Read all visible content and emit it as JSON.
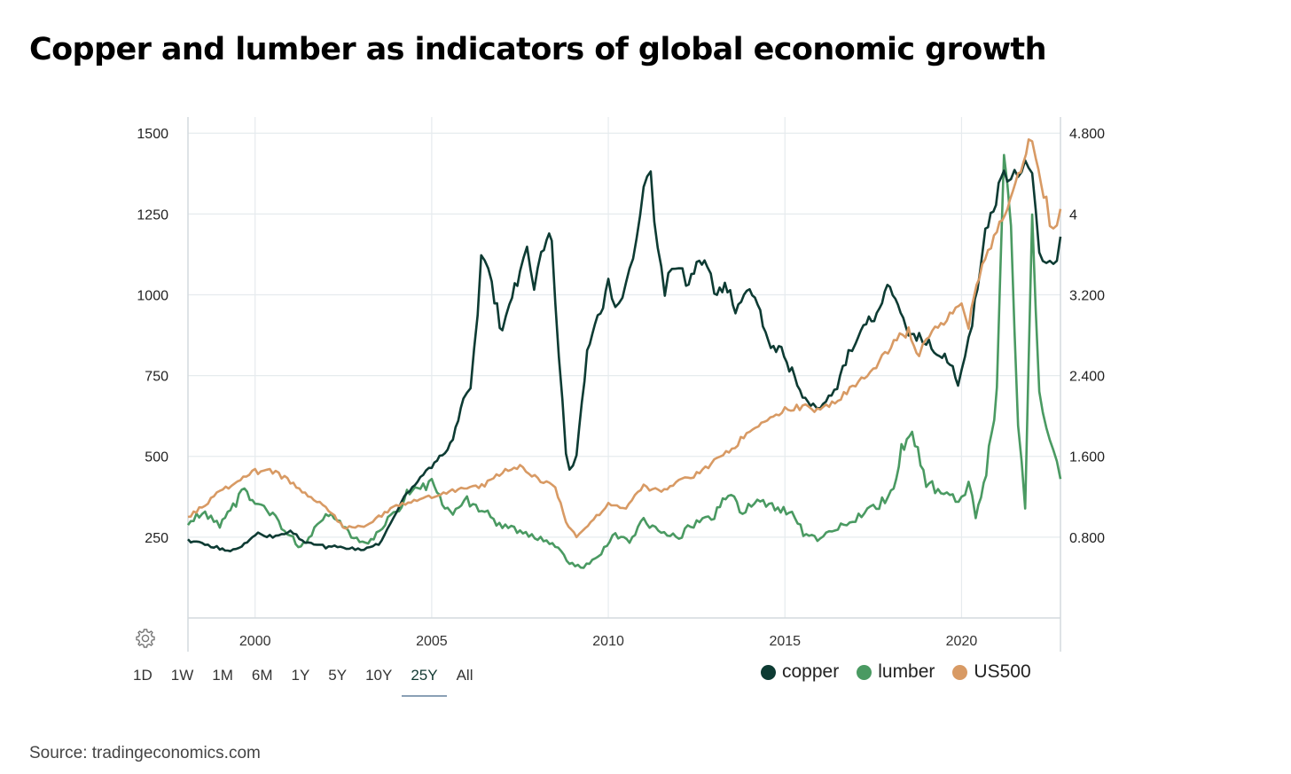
{
  "title": "Copper and lumber as indicators of global economic growth",
  "source": "Source: tradingeconomics.com",
  "range_buttons": [
    "1D",
    "1W",
    "1M",
    "6M",
    "1Y",
    "5Y",
    "10Y",
    "25Y",
    "All"
  ],
  "active_range": "25Y",
  "settings_icon": "gear-icon",
  "colors": {
    "copper": "#0d3b33",
    "lumber": "#4a9a62",
    "us500": "#d89a64",
    "grid": "#e6ebee",
    "axis": "#d4dade"
  },
  "chart_data": {
    "type": "line",
    "x_range": [
      1998.1,
      2022.8
    ],
    "x_ticks": [
      2000,
      2005,
      2010,
      2015,
      2020
    ],
    "left_axis": {
      "ticks": [
        250,
        500,
        750,
        1000,
        1250,
        1500
      ],
      "range": [
        0,
        1550
      ]
    },
    "right_axis": {
      "ticks": [
        "0.800",
        "1.600",
        "2.400",
        "3.200",
        "4",
        "4.800"
      ],
      "tick_values": [
        0.8,
        1.6,
        2.4,
        3.2,
        4.0,
        4.8
      ],
      "range": [
        0,
        4.96
      ]
    },
    "legend_position": "bottom-right",
    "grid": true,
    "series": [
      {
        "name": "lumber",
        "axis": "left",
        "color": "#4a9a62",
        "x": [
          1998.1,
          1998.5,
          1999.0,
          1999.3,
          1999.7,
          2000.0,
          2000.5,
          2001.0,
          2001.3,
          2001.6,
          2002.0,
          2002.4,
          2002.8,
          2003.2,
          2003.6,
          2004.0,
          2004.3,
          2004.6,
          2005.0,
          2005.3,
          2005.6,
          2006.0,
          2006.5,
          2007.0,
          2007.5,
          2008.0,
          2008.5,
          2008.9,
          2009.3,
          2009.8,
          2010.2,
          2010.6,
          2011.0,
          2011.5,
          2012.0,
          2012.5,
          2013.0,
          2013.4,
          2013.8,
          2014.3,
          2014.8,
          2015.2,
          2015.6,
          2016.0,
          2016.5,
          2017.0,
          2017.5,
          2018.0,
          2018.3,
          2018.6,
          2019.0,
          2019.5,
          2020.0,
          2020.2,
          2020.4,
          2020.7,
          2021.0,
          2021.2,
          2021.4,
          2021.6,
          2021.8,
          2022.0,
          2022.2,
          2022.4,
          2022.6,
          2022.8
        ],
        "y": [
          300,
          320,
          290,
          340,
          390,
          350,
          320,
          250,
          220,
          260,
          330,
          300,
          250,
          230,
          280,
          330,
          380,
          400,
          420,
          360,
          330,
          360,
          330,
          280,
          270,
          250,
          220,
          170,
          160,
          200,
          260,
          230,
          300,
          260,
          250,
          300,
          320,
          380,
          330,
          360,
          340,
          320,
          250,
          240,
          280,
          310,
          340,
          380,
          520,
          590,
          420,
          380,
          360,
          410,
          320,
          450,
          700,
          1500,
          1200,
          580,
          350,
          1200,
          700,
          600,
          500,
          430
        ]
      },
      {
        "name": "copper",
        "axis": "left",
        "color": "#0d3b33",
        "x": [
          1998.1,
          1998.5,
          1999.0,
          1999.3,
          1999.7,
          2000.0,
          2000.5,
          2001.0,
          2001.5,
          2002.0,
          2002.5,
          2003.0,
          2003.5,
          2004.0,
          2004.3,
          2004.6,
          2005.0,
          2005.3,
          2005.6,
          2005.9,
          2006.1,
          2006.3,
          2006.4,
          2006.5,
          2006.7,
          2007.0,
          2007.2,
          2007.5,
          2007.7,
          2007.9,
          2008.1,
          2008.4,
          2008.6,
          2008.8,
          2008.9,
          2009.1,
          2009.4,
          2009.7,
          2010.0,
          2010.2,
          2010.4,
          2010.6,
          2010.8,
          2011.0,
          2011.2,
          2011.4,
          2011.6,
          2011.8,
          2012.0,
          2012.2,
          2012.5,
          2012.8,
          2013.0,
          2013.3,
          2013.6,
          2014.0,
          2014.3,
          2014.6,
          2014.9,
          2015.2,
          2015.5,
          2015.8,
          2016.0,
          2016.4,
          2016.8,
          2017.0,
          2017.3,
          2017.6,
          2017.9,
          2018.2,
          2018.5,
          2018.8,
          2019.0,
          2019.3,
          2019.6,
          2019.9,
          2020.1,
          2020.3,
          2020.6,
          2020.9,
          2021.2,
          2021.4,
          2021.6,
          2021.8,
          2022.0,
          2022.2,
          2022.4,
          2022.6,
          2022.8
        ],
        "y": [
          240,
          230,
          215,
          205,
          230,
          260,
          250,
          270,
          230,
          220,
          220,
          210,
          230,
          320,
          390,
          430,
          470,
          500,
          560,
          680,
          720,
          940,
          1140,
          1110,
          1030,
          880,
          960,
          1070,
          1130,
          1000,
          1150,
          1180,
          800,
          520,
          450,
          500,
          820,
          920,
          1030,
          960,
          1010,
          1080,
          1150,
          1350,
          1360,
          1130,
          1000,
          1100,
          1080,
          1040,
          1080,
          1110,
          1000,
          1030,
          960,
          1000,
          950,
          840,
          820,
          760,
          680,
          650,
          660,
          700,
          820,
          860,
          900,
          950,
          1020,
          960,
          880,
          870,
          850,
          820,
          800,
          730,
          800,
          920,
          1150,
          1270,
          1400,
          1360,
          1380,
          1420,
          1350,
          1150,
          1100,
          1080,
          1180
        ]
      },
      {
        "name": "US500",
        "axis": "right",
        "color": "#d89a64",
        "x": [
          1998.1,
          1998.5,
          1999.0,
          1999.5,
          2000.0,
          2000.5,
          2001.0,
          2001.5,
          2002.0,
          2002.5,
          2003.0,
          2003.5,
          2004.0,
          2004.5,
          2005.0,
          2005.5,
          2006.0,
          2006.5,
          2007.0,
          2007.5,
          2008.0,
          2008.5,
          2008.8,
          2009.1,
          2009.5,
          2010.0,
          2010.5,
          2011.0,
          2011.5,
          2012.0,
          2012.5,
          2013.0,
          2013.5,
          2014.0,
          2014.5,
          2015.0,
          2015.5,
          2016.0,
          2016.5,
          2017.0,
          2017.5,
          2018.0,
          2018.5,
          2018.8,
          2019.0,
          2019.5,
          2020.0,
          2020.2,
          2020.5,
          2021.0,
          2021.3,
          2021.6,
          2021.9,
          2022.1,
          2022.4,
          2022.6,
          2022.8
        ],
        "y": [
          1.0,
          1.1,
          1.25,
          1.35,
          1.45,
          1.45,
          1.35,
          1.2,
          1.1,
          0.9,
          0.9,
          1.0,
          1.12,
          1.15,
          1.2,
          1.25,
          1.28,
          1.32,
          1.45,
          1.5,
          1.38,
          1.3,
          0.95,
          0.8,
          0.95,
          1.12,
          1.1,
          1.3,
          1.25,
          1.35,
          1.42,
          1.55,
          1.68,
          1.85,
          1.95,
          2.07,
          2.1,
          2.05,
          2.15,
          2.32,
          2.45,
          2.7,
          2.85,
          2.55,
          2.8,
          2.95,
          3.15,
          2.9,
          3.4,
          3.8,
          4.1,
          4.4,
          4.7,
          4.6,
          4.1,
          3.8,
          4.05
        ]
      }
    ]
  }
}
